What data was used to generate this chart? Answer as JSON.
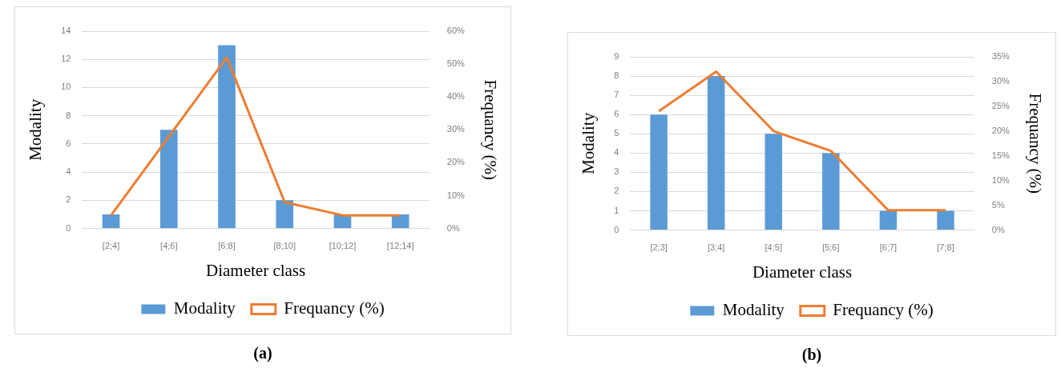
{
  "chart_data": [
    {
      "type": "bar",
      "xlabel": "Diameter class",
      "ylabel": "Modality",
      "y2label": "Frequancy (%)",
      "categories": [
        "[2;4]",
        "[4;6]",
        "[6;8]",
        "[8;10]",
        "[10;12]",
        "[12;14]"
      ],
      "series": [
        {
          "name": "Modality",
          "color": "#5b9bd5",
          "values": [
            1,
            7,
            13,
            2,
            1,
            1
          ]
        },
        {
          "name": "Frequancy (%)",
          "type": "line",
          "axis": "y2",
          "color": "#ed7d31",
          "values": [
            4,
            28,
            52,
            8,
            4,
            4
          ]
        }
      ],
      "ylim": [
        0,
        14
      ],
      "yticks": [
        0,
        2,
        4,
        6,
        8,
        10,
        12,
        14
      ],
      "y2lim": [
        0,
        60
      ],
      "y2ticks": [
        {
          "value": 0,
          "label": "0%"
        },
        {
          "value": 10,
          "label": "10%"
        },
        {
          "value": 20,
          "label": "20%"
        },
        {
          "value": 30,
          "label": "30%"
        },
        {
          "value": 40,
          "label": "40%"
        },
        {
          "value": 50,
          "label": "50%"
        },
        {
          "value": 60,
          "label": "60%"
        }
      ],
      "grid": "y",
      "legend": "bottom",
      "marker": "none",
      "annotations": [
        "(a)"
      ]
    },
    {
      "type": "bar",
      "xlabel": "Diameter class",
      "ylabel": "Modality",
      "y2label": "Frequancy (%)",
      "categories": [
        "[2;3]",
        "[3;4]",
        "[4;5]",
        "[5;6]",
        "[6;7]",
        "[7;8]"
      ],
      "series": [
        {
          "name": "Modality",
          "color": "#5b9bd5",
          "values": [
            6,
            8,
            5,
            4,
            1,
            1
          ]
        },
        {
          "name": "Frequancy (%)",
          "type": "line",
          "axis": "y2",
          "color": "#ed7d31",
          "values": [
            24,
            32,
            20,
            16,
            4,
            4
          ]
        }
      ],
      "ylim": [
        0,
        9
      ],
      "yticks": [
        0,
        1,
        2,
        3,
        4,
        5,
        6,
        7,
        8,
        9
      ],
      "y2lim": [
        0,
        35
      ],
      "y2ticks": [
        {
          "value": 0,
          "label": "0%"
        },
        {
          "value": 5,
          "label": "5%"
        },
        {
          "value": 10,
          "label": "10%"
        },
        {
          "value": 15,
          "label": "15%"
        },
        {
          "value": 20,
          "label": "20%"
        },
        {
          "value": 25,
          "label": "25%"
        },
        {
          "value": 30,
          "label": "30%"
        },
        {
          "value": 35,
          "label": "35%"
        }
      ],
      "grid": "y",
      "legend": "bottom",
      "marker": "none",
      "annotations": [
        "(b)"
      ]
    }
  ]
}
